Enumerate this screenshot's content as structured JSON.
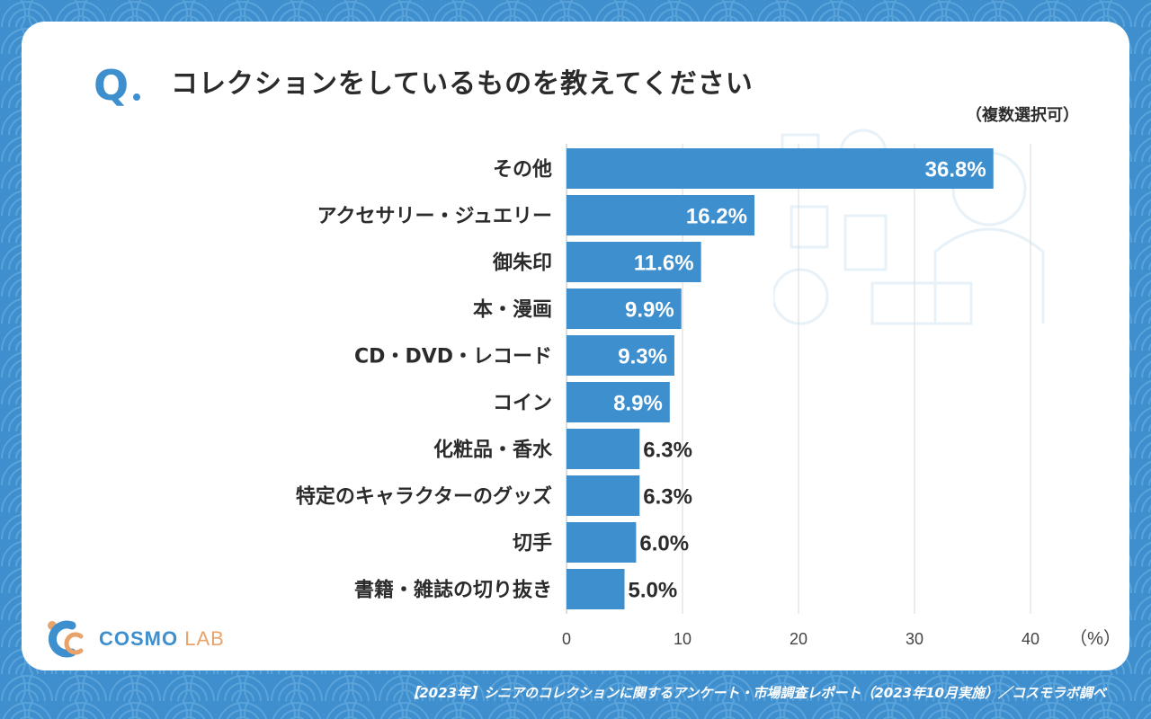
{
  "header": {
    "q_mark": "Q",
    "title": "コレクションをしているものを教えてください",
    "note": "（複数選択可）"
  },
  "chart_data": {
    "type": "bar",
    "orientation": "horizontal",
    "categories": [
      "その他",
      "アクセサリー・ジュエリー",
      "御朱印",
      "本・漫画",
      "CD・DVD・レコード",
      "コイン",
      "化粧品・香水",
      "特定のキャラクターのグッズ",
      "切手",
      "書籍・雑誌の切り抜き"
    ],
    "values": [
      36.8,
      16.2,
      11.6,
      9.9,
      9.3,
      8.9,
      6.3,
      6.3,
      6.0,
      5.0
    ],
    "value_labels": [
      "36.8%",
      "16.2%",
      "11.6%",
      "9.9%",
      "9.3%",
      "8.9%",
      "6.3%",
      "6.3%",
      "6.0%",
      "5.0%"
    ],
    "xlim": [
      0,
      40
    ],
    "xticks": [
      "0",
      "10",
      "20",
      "30",
      "40"
    ],
    "xunit": "（%）",
    "grid": true,
    "bar_color": "#3e8fce"
  },
  "footer": {
    "text": "【2023年】シニアのコレクションに関するアンケート・市場調査レポート（2023年10月実施）／コスモラボ調べ"
  },
  "logo": {
    "name": "COSMO",
    "suffix": "LAB"
  },
  "colors": {
    "background": "#3f8fcf",
    "wave": "#5aa3da",
    "accent": "#3e8fce",
    "logo_orange": "#e8a36a"
  }
}
